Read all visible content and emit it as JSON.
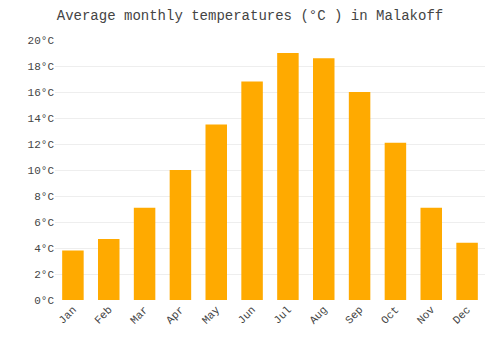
{
  "chart_data": {
    "type": "bar",
    "title": "Average monthly temperatures (°C ) in Malakoff",
    "categories": [
      "Jan",
      "Feb",
      "Mar",
      "Apr",
      "May",
      "Jun",
      "Jul",
      "Aug",
      "Sep",
      "Oct",
      "Nov",
      "Dec"
    ],
    "values": [
      3.8,
      4.7,
      7.1,
      10.0,
      13.5,
      16.8,
      19.0,
      18.6,
      16.0,
      12.1,
      7.1,
      4.4
    ],
    "color": "#FFAA00",
    "ylim": [
      0,
      20
    ],
    "yticks": [
      {
        "value": 0,
        "label": "0°C"
      },
      {
        "value": 2,
        "label": "2°C"
      },
      {
        "value": 4,
        "label": "4°C"
      },
      {
        "value": 6,
        "label": "6°C"
      },
      {
        "value": 8,
        "label": "8°C"
      },
      {
        "value": 10,
        "label": "10°C"
      },
      {
        "value": 12,
        "label": "12°C"
      },
      {
        "value": 14,
        "label": "14°C"
      },
      {
        "value": 16,
        "label": "16°C"
      },
      {
        "value": 18,
        "label": "18°C"
      },
      {
        "value": 20,
        "label": "20°C"
      }
    ],
    "grid": true
  }
}
